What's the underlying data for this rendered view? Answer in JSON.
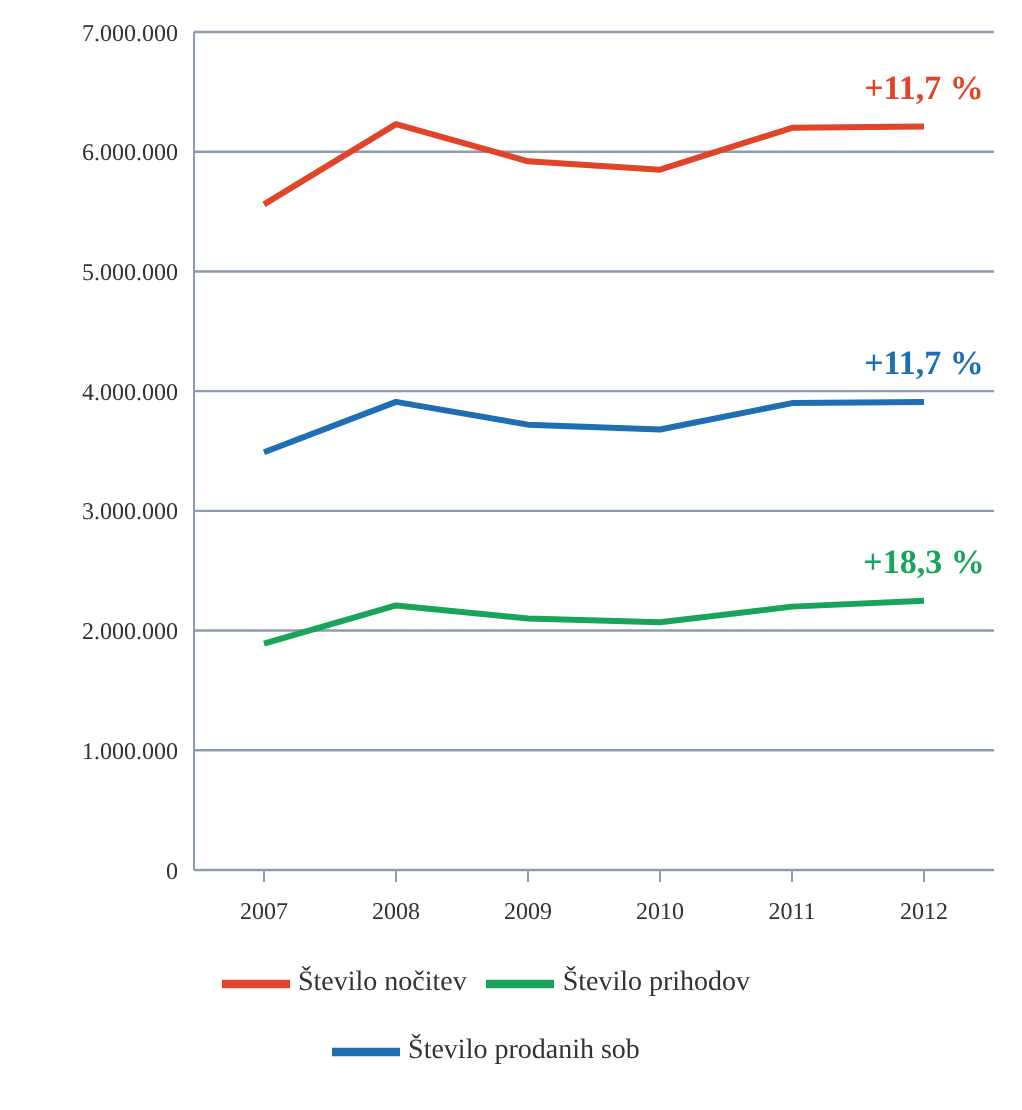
{
  "chart_data": {
    "type": "line",
    "categories": [
      "2007",
      "2008",
      "2009",
      "2010",
      "2011",
      "2012"
    ],
    "series": [
      {
        "name": "Število prihodov",
        "color": "#1aa35a",
        "values": [
          1890000,
          2210000,
          2100000,
          2070000,
          2200000,
          2250000
        ]
      },
      {
        "name": "Število nočitev",
        "color": "#e0452a",
        "values": [
          5560000,
          6230000,
          5920000,
          5850000,
          6200000,
          6210000
        ]
      },
      {
        "name": "Število prodanih  sob",
        "color": "#1f6db3",
        "values": [
          3490000,
          3910000,
          3720000,
          3680000,
          3900000,
          3910000
        ]
      }
    ],
    "ylim": [
      0,
      7000000
    ],
    "yticks": [
      {
        "value": 0,
        "label": "0"
      },
      {
        "value": 1000000,
        "label": "1.000.000"
      },
      {
        "value": 2000000,
        "label": "2.000.000"
      },
      {
        "value": 3000000,
        "label": "3.000.000"
      },
      {
        "value": 4000000,
        "label": "4.000.000"
      },
      {
        "value": 5000000,
        "label": "5.000.000"
      },
      {
        "value": 6000000,
        "label": "6.000.000"
      },
      {
        "value": 7000000,
        "label": "7.000.000"
      }
    ],
    "annotations": [
      {
        "text": "+11,7 %",
        "x": "2012",
        "y": 6210000
      },
      {
        "text": "+11,7 %",
        "x": "2012",
        "y": 3910000
      },
      {
        "text": "+18,3 %",
        "x": "2012",
        "y": 2250000
      }
    ],
    "grid": "y",
    "legend": "bottom",
    "marker": "none",
    "line_style": "solid"
  }
}
